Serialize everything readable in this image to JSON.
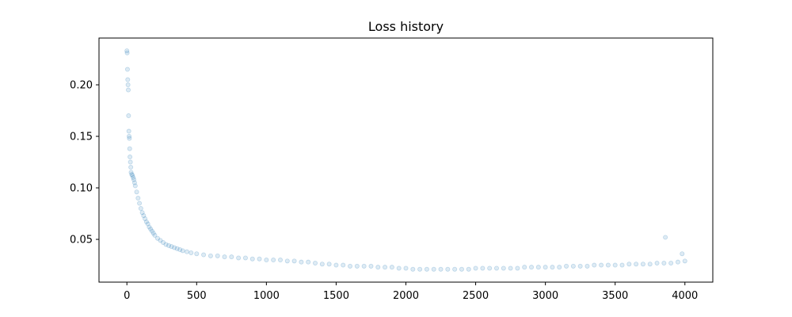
{
  "chart_data": {
    "type": "scatter",
    "title": "Loss history",
    "xlabel": "",
    "ylabel": "",
    "xlim": [
      -200,
      4200
    ],
    "ylim": [
      0.0085,
      0.2454
    ],
    "xticks": [
      0,
      500,
      1000,
      1500,
      2000,
      2500,
      3000,
      3500,
      4000
    ],
    "yticks": [
      0.05,
      0.1,
      0.15,
      0.2
    ],
    "xtick_labels": [
      "0",
      "500",
      "1000",
      "1500",
      "2000",
      "2500",
      "3000",
      "3500",
      "4000"
    ],
    "ytick_labels": [
      "0.05",
      "0.10",
      "0.15",
      "0.20"
    ],
    "grid": false,
    "legend": "none",
    "marker_color": "#1f77b4",
    "marker_alpha": 0.15,
    "series": [
      {
        "x": [
          0,
          2,
          4,
          6,
          8,
          10,
          12,
          14,
          16,
          18,
          20,
          22,
          25,
          28,
          30,
          35,
          40,
          45,
          50,
          55,
          60,
          70,
          80,
          90,
          100,
          110,
          120,
          130,
          140,
          150,
          160,
          170,
          180,
          190,
          200,
          220,
          240,
          260,
          280,
          300,
          320,
          340,
          360,
          380,
          400,
          430,
          460,
          500,
          550,
          600,
          650,
          700,
          750,
          800,
          850,
          900,
          950,
          1000,
          1050,
          1100,
          1150,
          1200,
          1250,
          1300,
          1350,
          1400,
          1450,
          1500,
          1550,
          1600,
          1650,
          1700,
          1750,
          1800,
          1850,
          1900,
          1950,
          2000,
          2050,
          2100,
          2150,
          2200,
          2250,
          2300,
          2350,
          2400,
          2450,
          2500,
          2550,
          2600,
          2650,
          2700,
          2750,
          2800,
          2850,
          2900,
          2950,
          3000,
          3050,
          3100,
          3150,
          3200,
          3250,
          3300,
          3350,
          3400,
          3450,
          3500,
          3550,
          3600,
          3650,
          3700,
          3750,
          3800,
          3850,
          3860,
          3900,
          3950,
          3980,
          4000
        ],
        "y": [
          0.233,
          0.231,
          0.215,
          0.205,
          0.2,
          0.195,
          0.17,
          0.155,
          0.15,
          0.148,
          0.138,
          0.13,
          0.125,
          0.12,
          0.115,
          0.113,
          0.112,
          0.11,
          0.108,
          0.105,
          0.102,
          0.096,
          0.09,
          0.085,
          0.08,
          0.076,
          0.073,
          0.07,
          0.067,
          0.065,
          0.062,
          0.06,
          0.058,
          0.056,
          0.054,
          0.051,
          0.049,
          0.047,
          0.045,
          0.044,
          0.043,
          0.042,
          0.041,
          0.04,
          0.039,
          0.038,
          0.037,
          0.036,
          0.035,
          0.034,
          0.034,
          0.033,
          0.033,
          0.032,
          0.032,
          0.031,
          0.031,
          0.03,
          0.03,
          0.03,
          0.029,
          0.029,
          0.028,
          0.028,
          0.027,
          0.026,
          0.026,
          0.025,
          0.025,
          0.024,
          0.024,
          0.024,
          0.024,
          0.023,
          0.023,
          0.023,
          0.022,
          0.022,
          0.021,
          0.021,
          0.021,
          0.021,
          0.021,
          0.021,
          0.021,
          0.021,
          0.021,
          0.022,
          0.022,
          0.022,
          0.022,
          0.022,
          0.022,
          0.022,
          0.023,
          0.023,
          0.023,
          0.023,
          0.023,
          0.023,
          0.024,
          0.024,
          0.024,
          0.024,
          0.025,
          0.025,
          0.025,
          0.025,
          0.025,
          0.026,
          0.026,
          0.026,
          0.026,
          0.027,
          0.027,
          0.052,
          0.027,
          0.028,
          0.036,
          0.029
        ]
      }
    ]
  }
}
